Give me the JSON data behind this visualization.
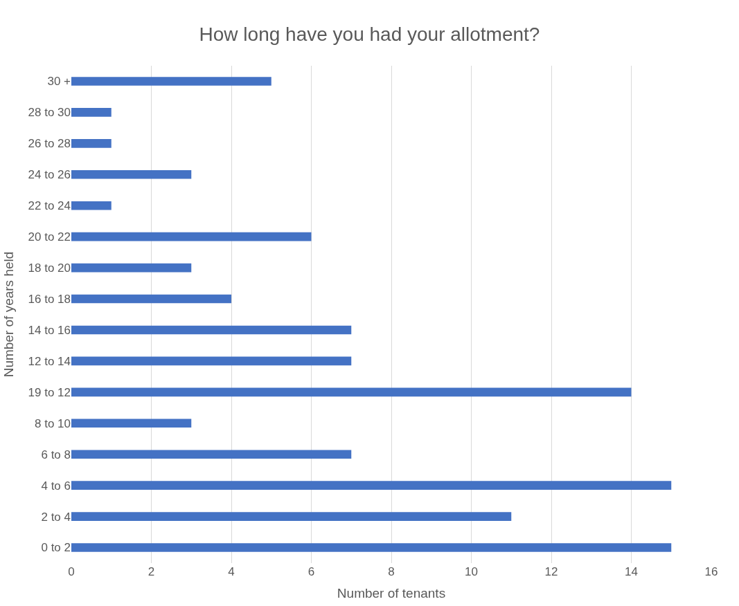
{
  "chart_data": {
    "type": "bar",
    "orientation": "horizontal",
    "title": "How long have you had your allotment?",
    "xlabel": "Number of tenants",
    "ylabel": "Number of years held",
    "categories": [
      "30 +",
      "28 to 30",
      "26 to 28",
      "24 to 26",
      "22 to 24",
      "20 to 22",
      "18 to 20",
      "16 to 18",
      "14 to 16",
      "12 to 14",
      "19 to 12",
      "8 to 10",
      "6 to 8",
      "4 to 6",
      "2 to 4",
      "0 to 2"
    ],
    "values": [
      5,
      1,
      1,
      3,
      1,
      6,
      3,
      4,
      7,
      7,
      14,
      3,
      7,
      15,
      11,
      15
    ],
    "color": "#4472c4",
    "xlim": [
      0,
      16
    ],
    "xticks": [
      0,
      2,
      4,
      6,
      8,
      10,
      12,
      14,
      16
    ],
    "grid": "x",
    "legend": false
  }
}
